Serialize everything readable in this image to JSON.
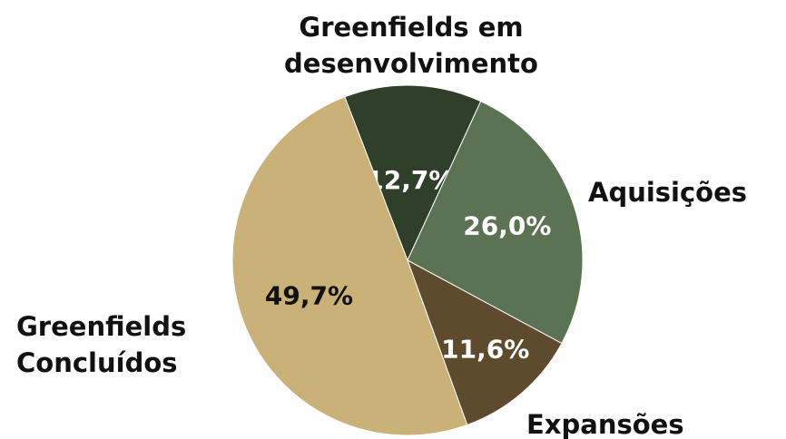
{
  "chart_data": {
    "type": "pie",
    "categories": [
      "Greenfields em desenvolvimento",
      "Aquisições",
      "Expansões",
      "Greenfields Concluídos"
    ],
    "values": [
      12.7,
      26.0,
      11.6,
      49.7
    ],
    "value_labels": [
      "12,7%",
      "26,0%",
      "11,6%",
      "49,7%"
    ],
    "colors": [
      "#2f3f2a",
      "#5b7352",
      "#5e4b2d",
      "#c9b178"
    ]
  }
}
